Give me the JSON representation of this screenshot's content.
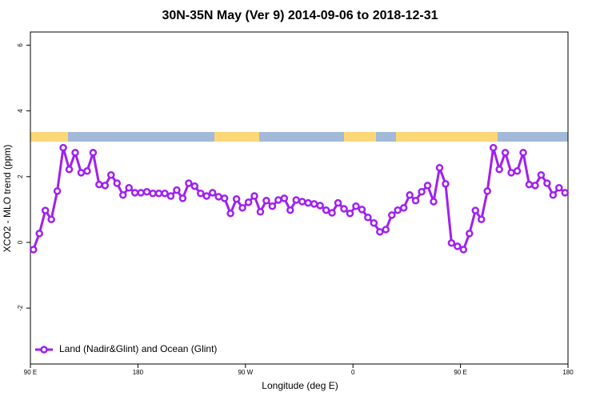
{
  "chart_data": {
    "type": "line",
    "title": "30N-35N May (Ver 9)   2014-09-06 to 2018-12-31",
    "x_label": "Longitude (deg E)",
    "y_label": "XCO2 - MLO trend (ppm)",
    "xlim": [
      90,
      540
    ],
    "xticks": [
      {
        "value": 90,
        "label": "90 E"
      },
      {
        "value": 180,
        "label": "180"
      },
      {
        "value": 270,
        "label": "90 W"
      },
      {
        "value": 360,
        "label": "0"
      },
      {
        "value": 450,
        "label": "90 E"
      },
      {
        "value": 540,
        "label": "180"
      }
    ],
    "ylim": [
      -3.7,
      6.4
    ],
    "yticks": [
      {
        "value": -2,
        "label": "-2"
      },
      0,
      2,
      4,
      6
    ],
    "legend": "bottom-left",
    "x": [
      92.5,
      97.5,
      102.5,
      107.5,
      112.5,
      117.5,
      122.5,
      127.5,
      132.5,
      137.5,
      142.5,
      147.5,
      152.5,
      157.5,
      162.5,
      167.5,
      172.5,
      177.5,
      182.5,
      187.5,
      192.5,
      197.5,
      202.5,
      207.5,
      212.5,
      217.5,
      222.5,
      227.5,
      232.5,
      237.5,
      242.5,
      247.5,
      252.5,
      257.5,
      262.5,
      267.5,
      272.5,
      277.5,
      282.5,
      287.5,
      292.5,
      297.5,
      302.5,
      307.5,
      312.5,
      317.5,
      322.5,
      327.5,
      332.5,
      337.5,
      342.5,
      347.5,
      352.5,
      357.5,
      362.5,
      367.5,
      372.5,
      377.5,
      382.5,
      387.5,
      392.5,
      397.5,
      402.5,
      407.5,
      412.5,
      417.5,
      422.5,
      427.5,
      432.5,
      437.5,
      442.5,
      447.5,
      452.5,
      457.5,
      462.5,
      467.5,
      472.5,
      477.5,
      482.5,
      487.5,
      492.5,
      497.5,
      502.5,
      507.5,
      512.5,
      517.5,
      522.5,
      527.5,
      532.5,
      537.5
    ],
    "series": [
      {
        "name": "Land (Nadir&Glint) and Ocean (Glint)",
        "color": "#a020f0",
        "values": [
          -0.22,
          0.27,
          0.97,
          0.7,
          1.56,
          2.88,
          2.22,
          2.73,
          2.12,
          2.17,
          2.73,
          1.76,
          1.73,
          2.05,
          1.8,
          1.44,
          1.66,
          1.51,
          1.51,
          1.54,
          1.49,
          1.49,
          1.49,
          1.41,
          1.59,
          1.34,
          1.8,
          1.71,
          1.49,
          1.41,
          1.51,
          1.39,
          1.34,
          0.88,
          1.32,
          1.05,
          1.22,
          1.41,
          0.93,
          1.27,
          1.1,
          1.29,
          1.34,
          0.98,
          1.29,
          1.24,
          1.2,
          1.17,
          1.12,
          0.98,
          0.9,
          1.2,
          1.02,
          0.88,
          1.1,
          1.0,
          0.76,
          0.59,
          0.32,
          0.39,
          0.83,
          0.98,
          1.05,
          1.44,
          1.27,
          1.54,
          1.73,
          1.24,
          2.27,
          1.78,
          -0.02,
          -0.12,
          -0.22,
          0.27,
          0.97,
          0.7,
          1.56,
          2.88,
          2.22,
          2.73,
          2.12,
          2.17,
          2.73,
          1.76,
          1.73,
          2.05,
          1.8,
          1.44,
          1.66,
          1.51
        ]
      }
    ]
  }
}
